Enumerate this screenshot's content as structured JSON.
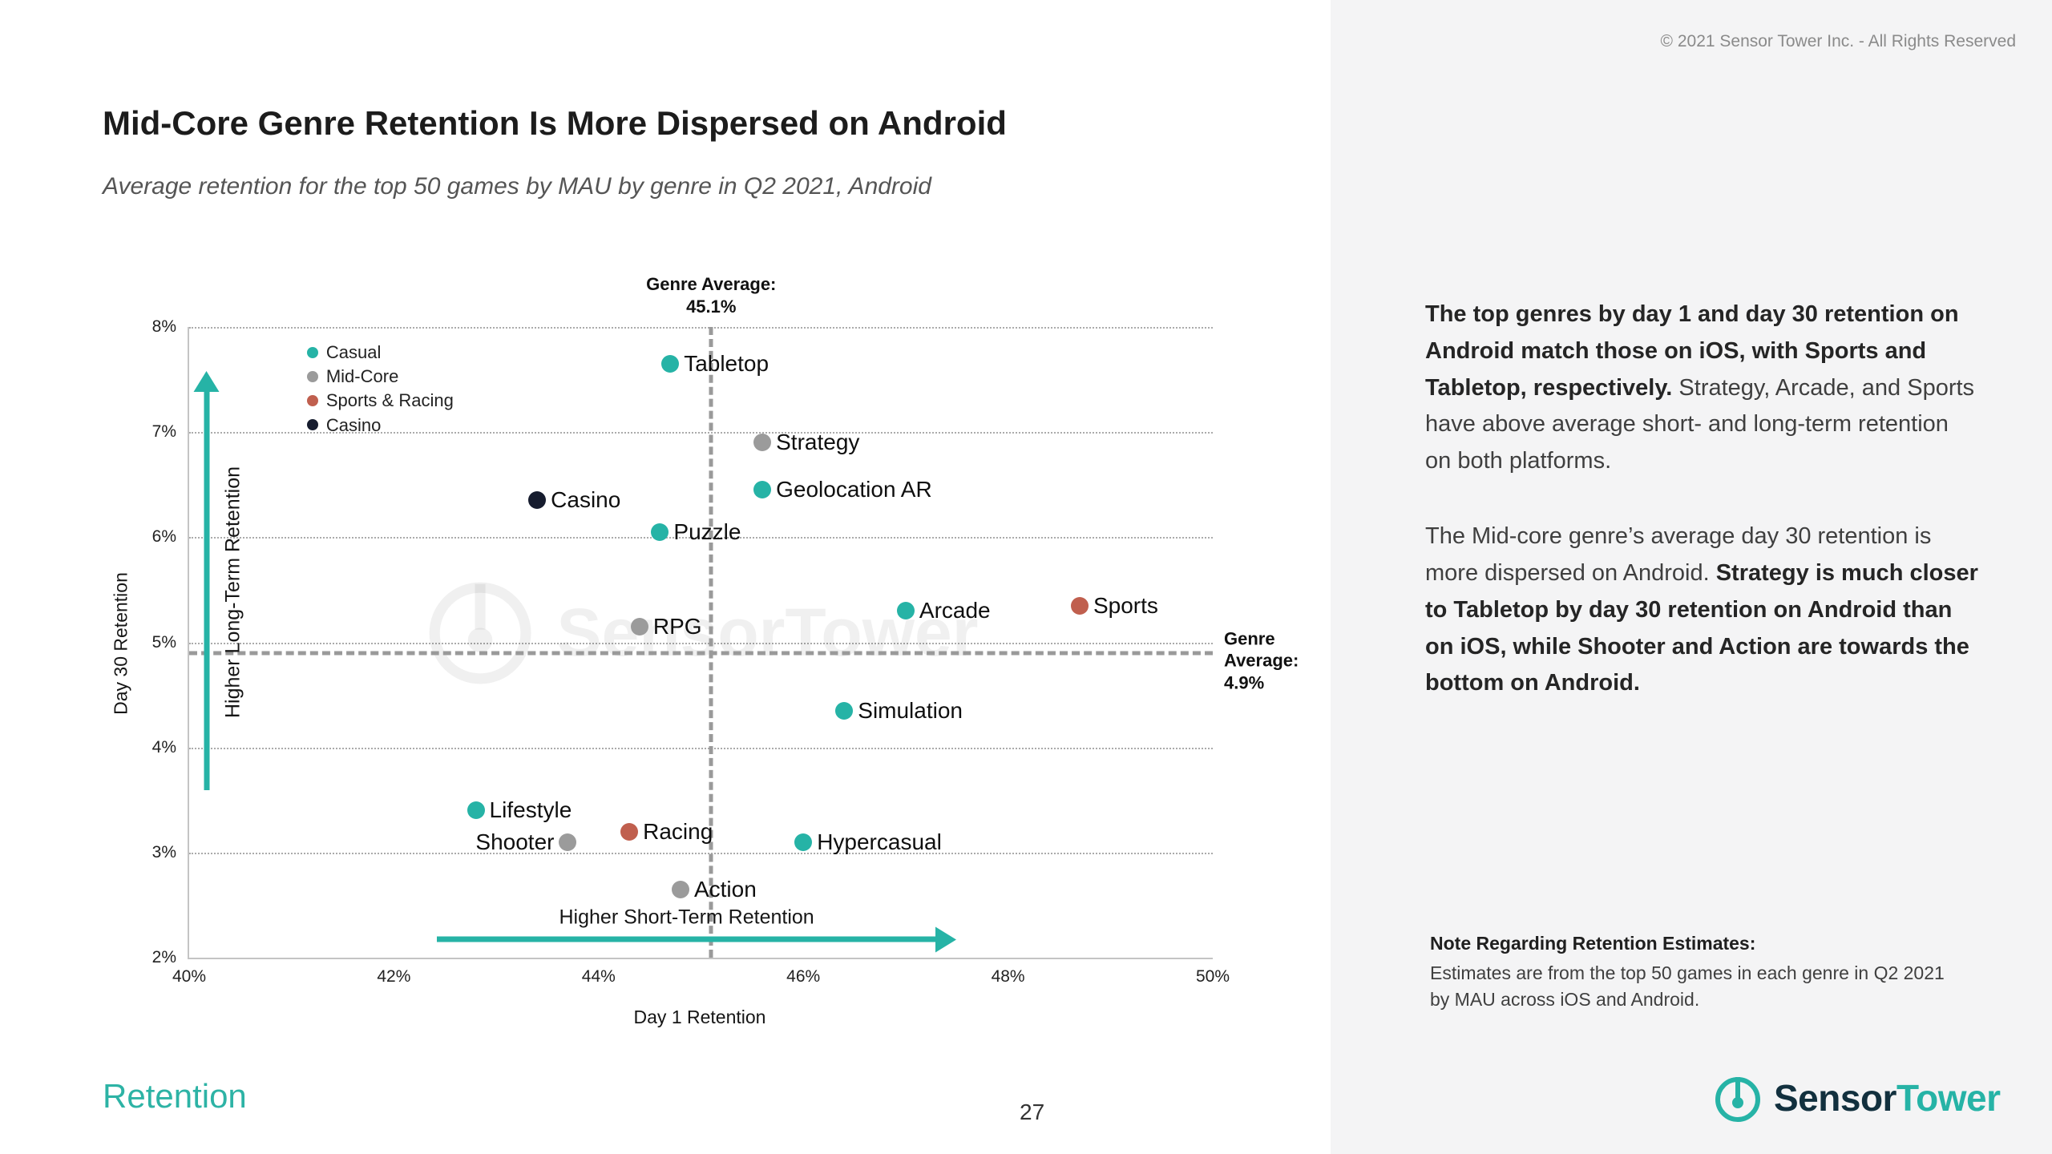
{
  "page": {
    "copyright": "© 2021 Sensor Tower Inc. - All Rights Reserved",
    "title": "Mid-Core Genre Retention Is More Dispersed on Android",
    "subtitle": "Average retention for the top 50 games by MAU by genre in Q2 2021, Android",
    "footer_section": "Retention",
    "page_number": "27",
    "brand": {
      "name_dark": "Sensor",
      "name_teal": "Tower",
      "teal": "#26b3a6",
      "dark": "#12303e"
    }
  },
  "sidebar": {
    "paragraph1": [
      {
        "text": "The top genres by day 1 and day 30 retention on Android match those on iOS, with Sports and Tabletop, respectively.",
        "bold": true
      },
      {
        "text": " Strategy, Arcade, and Sports have above average short- and long-term retention on both platforms.",
        "bold": false
      }
    ],
    "paragraph2": [
      {
        "text": "The Mid-core genre’s average day 30 retention is more dispersed on Android. ",
        "bold": false
      },
      {
        "text": "Strategy is much closer to Tabletop by day 30 retention on Android than on iOS, while Shooter and Action are towards the bottom on Android.",
        "bold": true
      }
    ],
    "note_title": "Note Regarding Retention Estimates:",
    "note_body": "Estimates are from the top 50 games in each genre in Q2 2021 by MAU across iOS and Android."
  },
  "chart_data": {
    "type": "scatter",
    "xlabel": "Day 1 Retention",
    "ylabel": "Day 30 Retention",
    "xlim": [
      40,
      50
    ],
    "ylim": [
      2,
      8
    ],
    "xtick_values": [
      40,
      42,
      44,
      46,
      48,
      50
    ],
    "xticks": [
      "40%",
      "42%",
      "44%",
      "46%",
      "48%",
      "50%"
    ],
    "ytick_values": [
      2,
      3,
      4,
      5,
      6,
      7,
      8
    ],
    "yticks": [
      "2%",
      "3%",
      "4%",
      "5%",
      "6%",
      "7%",
      "8%"
    ],
    "grid": "horizontal-dotted",
    "legend_position": "top-left-inside",
    "series": [
      {
        "name": "Casual",
        "color": "#26b3a6"
      },
      {
        "name": "Mid-Core",
        "color": "#9b9b9b"
      },
      {
        "name": "Sports & Racing",
        "color": "#c05f4e"
      },
      {
        "name": "Casino",
        "color": "#161c2e"
      }
    ],
    "points": [
      {
        "label": "Tabletop",
        "series": "Casual",
        "x": 44.7,
        "y": 7.65,
        "label_side": "right"
      },
      {
        "label": "Strategy",
        "series": "Mid-Core",
        "x": 45.6,
        "y": 6.9,
        "label_side": "right"
      },
      {
        "label": "Geolocation AR",
        "series": "Casual",
        "x": 45.6,
        "y": 6.45,
        "label_side": "right"
      },
      {
        "label": "Casino",
        "series": "Casino",
        "x": 43.4,
        "y": 6.35,
        "label_side": "right"
      },
      {
        "label": "Puzzle",
        "series": "Casual",
        "x": 44.6,
        "y": 6.05,
        "label_side": "right"
      },
      {
        "label": "RPG",
        "series": "Mid-Core",
        "x": 44.4,
        "y": 5.15,
        "label_side": "right"
      },
      {
        "label": "Arcade",
        "series": "Casual",
        "x": 47.0,
        "y": 5.3,
        "label_side": "right"
      },
      {
        "label": "Sports",
        "series": "Sports & Racing",
        "x": 48.7,
        "y": 5.35,
        "label_side": "right"
      },
      {
        "label": "Simulation",
        "series": "Casual",
        "x": 46.4,
        "y": 4.35,
        "label_side": "right"
      },
      {
        "label": "Lifestyle",
        "series": "Casual",
        "x": 42.8,
        "y": 3.4,
        "label_side": "right"
      },
      {
        "label": "Shooter",
        "series": "Mid-Core",
        "x": 43.7,
        "y": 3.1,
        "label_side": "left"
      },
      {
        "label": "Racing",
        "series": "Sports & Racing",
        "x": 44.3,
        "y": 3.2,
        "label_side": "right"
      },
      {
        "label": "Hypercasual",
        "series": "Casual",
        "x": 46.0,
        "y": 3.1,
        "label_side": "right"
      },
      {
        "label": "Action",
        "series": "Mid-Core",
        "x": 44.8,
        "y": 2.65,
        "label_side": "right"
      }
    ],
    "genre_average_x": {
      "value": 45.1,
      "lines": [
        "Genre Average:",
        "45.1%"
      ]
    },
    "genre_average_y": {
      "value": 4.9,
      "lines": [
        "Genre",
        "Average:",
        "4.9%"
      ]
    },
    "annotations": {
      "y_arrow_label": "Higher Long-Term Retention",
      "x_arrow_label": "Higher Short-Term Retention"
    },
    "watermark": "SensorTower"
  }
}
